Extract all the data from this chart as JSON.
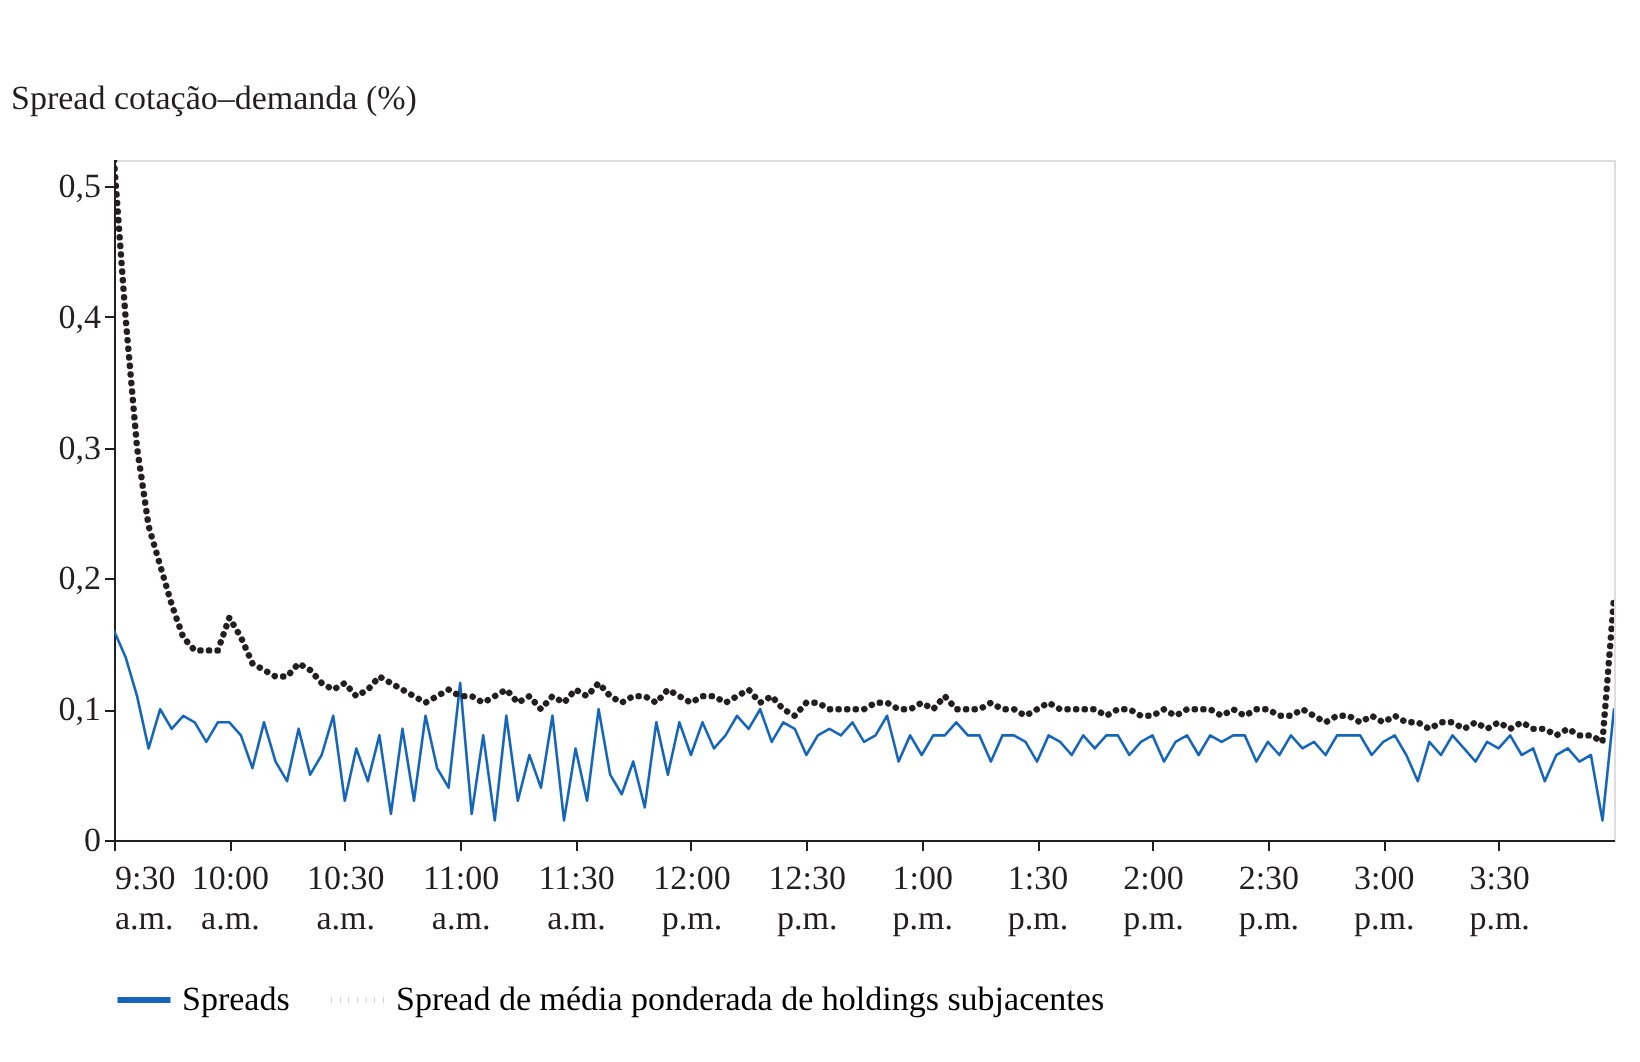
{
  "chart_data": {
    "type": "line",
    "ylabel": "Spread cotação–demanda (%)",
    "x": [
      9.5,
      9.55,
      9.6,
      9.65,
      9.7,
      9.75,
      9.8,
      9.85,
      9.9,
      9.95,
      10.0,
      10.05,
      10.1,
      10.15,
      10.2,
      10.25,
      10.3,
      10.35,
      10.4,
      10.45,
      10.5,
      10.55,
      10.6,
      10.65,
      10.7,
      10.75,
      10.8,
      10.85,
      10.9,
      10.95,
      11.0,
      11.05,
      11.1,
      11.15,
      11.2,
      11.25,
      11.3,
      11.35,
      11.4,
      11.45,
      11.5,
      11.55,
      11.6,
      11.65,
      11.7,
      11.75,
      11.8,
      11.85,
      11.9,
      11.95,
      12.0,
      12.05,
      12.1,
      12.15,
      12.2,
      12.25,
      12.3,
      12.35,
      12.4,
      12.45,
      12.5,
      12.55,
      12.6,
      12.65,
      12.7,
      12.75,
      12.8,
      12.85,
      12.9,
      12.95,
      13.0,
      13.05,
      13.1,
      13.15,
      13.2,
      13.25,
      13.3,
      13.35,
      13.4,
      13.45,
      13.5,
      13.55,
      13.6,
      13.65,
      13.7,
      13.75,
      13.8,
      13.85,
      13.9,
      13.95,
      14.0,
      14.05,
      14.1,
      14.15,
      14.2,
      14.25,
      14.3,
      14.35,
      14.4,
      14.45,
      14.5,
      14.55,
      14.6,
      14.65,
      14.7,
      14.75,
      14.8,
      14.85,
      14.9,
      14.95,
      15.0,
      15.05,
      15.1,
      15.15,
      15.2,
      15.25,
      15.3,
      15.35,
      15.4,
      15.45,
      15.5,
      15.55,
      15.6,
      15.65,
      15.7,
      15.75,
      15.8,
      15.85,
      15.9,
      15.95,
      16.0
    ],
    "series": [
      {
        "name": "Spreads",
        "color": "#1565b8",
        "line_style": "solid",
        "values": [
          0.16,
          0.14,
          0.11,
          0.07,
          0.1,
          0.085,
          0.095,
          0.09,
          0.075,
          0.09,
          0.09,
          0.08,
          0.055,
          0.09,
          0.06,
          0.045,
          0.085,
          0.05,
          0.065,
          0.095,
          0.03,
          0.07,
          0.045,
          0.08,
          0.02,
          0.085,
          0.03,
          0.095,
          0.055,
          0.04,
          0.12,
          0.02,
          0.08,
          0.015,
          0.095,
          0.03,
          0.065,
          0.04,
          0.095,
          0.015,
          0.07,
          0.03,
          0.1,
          0.05,
          0.035,
          0.06,
          0.025,
          0.09,
          0.05,
          0.09,
          0.065,
          0.09,
          0.07,
          0.08,
          0.095,
          0.085,
          0.1,
          0.075,
          0.09,
          0.085,
          0.065,
          0.08,
          0.085,
          0.08,
          0.09,
          0.075,
          0.08,
          0.095,
          0.06,
          0.08,
          0.065,
          0.08,
          0.08,
          0.09,
          0.08,
          0.08,
          0.06,
          0.08,
          0.08,
          0.075,
          0.06,
          0.08,
          0.075,
          0.065,
          0.08,
          0.07,
          0.08,
          0.08,
          0.065,
          0.075,
          0.08,
          0.06,
          0.075,
          0.08,
          0.065,
          0.08,
          0.075,
          0.08,
          0.08,
          0.06,
          0.075,
          0.065,
          0.08,
          0.07,
          0.075,
          0.065,
          0.08,
          0.08,
          0.08,
          0.065,
          0.075,
          0.08,
          0.065,
          0.045,
          0.075,
          0.065,
          0.08,
          0.07,
          0.06,
          0.075,
          0.07,
          0.08,
          0.065,
          0.07,
          0.045,
          0.065,
          0.07,
          0.06,
          0.065,
          0.015,
          0.1
        ]
      },
      {
        "name": "Spread de média ponderada de holdings subjacentes",
        "color": "#231f20",
        "line_style": "dotted",
        "values": [
          0.52,
          0.4,
          0.3,
          0.24,
          0.21,
          0.18,
          0.155,
          0.145,
          0.145,
          0.145,
          0.17,
          0.155,
          0.135,
          0.13,
          0.125,
          0.125,
          0.135,
          0.13,
          0.12,
          0.115,
          0.12,
          0.11,
          0.115,
          0.125,
          0.12,
          0.115,
          0.11,
          0.105,
          0.11,
          0.115,
          0.11,
          0.11,
          0.105,
          0.11,
          0.115,
          0.105,
          0.11,
          0.1,
          0.11,
          0.105,
          0.115,
          0.11,
          0.12,
          0.11,
          0.105,
          0.11,
          0.11,
          0.105,
          0.115,
          0.11,
          0.105,
          0.11,
          0.11,
          0.105,
          0.11,
          0.115,
          0.105,
          0.11,
          0.1,
          0.095,
          0.105,
          0.105,
          0.1,
          0.1,
          0.1,
          0.1,
          0.105,
          0.105,
          0.1,
          0.1,
          0.105,
          0.1,
          0.11,
          0.1,
          0.1,
          0.1,
          0.105,
          0.1,
          0.1,
          0.095,
          0.1,
          0.105,
          0.1,
          0.1,
          0.1,
          0.1,
          0.095,
          0.1,
          0.1,
          0.095,
          0.095,
          0.1,
          0.095,
          0.1,
          0.1,
          0.1,
          0.095,
          0.1,
          0.095,
          0.1,
          0.1,
          0.095,
          0.095,
          0.1,
          0.095,
          0.09,
          0.095,
          0.095,
          0.09,
          0.095,
          0.09,
          0.095,
          0.09,
          0.09,
          0.085,
          0.09,
          0.09,
          0.085,
          0.09,
          0.085,
          0.09,
          0.085,
          0.09,
          0.085,
          0.085,
          0.08,
          0.085,
          0.08,
          0.08,
          0.075,
          0.185
        ]
      }
    ],
    "xlim": [
      9.5,
      16.0
    ],
    "xticks": [
      {
        "value": 9.5,
        "label": "9:30\na.m."
      },
      {
        "value": 10.0,
        "label": "10:00\na.m."
      },
      {
        "value": 10.5,
        "label": "10:30\na.m."
      },
      {
        "value": 11.0,
        "label": "11:00\na.m."
      },
      {
        "value": 11.5,
        "label": "11:30\na.m."
      },
      {
        "value": 12.0,
        "label": "12:00\np.m."
      },
      {
        "value": 12.5,
        "label": "12:30\np.m."
      },
      {
        "value": 13.0,
        "label": "1:00\np.m."
      },
      {
        "value": 13.5,
        "label": "1:30\np.m."
      },
      {
        "value": 14.0,
        "label": "2:00\np.m."
      },
      {
        "value": 14.5,
        "label": "2:30\np.m."
      },
      {
        "value": 15.0,
        "label": "3:00\np.m."
      },
      {
        "value": 15.5,
        "label": "3:30\np.m."
      }
    ],
    "ylim": [
      0,
      0.52
    ],
    "yticks": [
      0,
      {
        "value": 0.1,
        "label": "0,1"
      },
      {
        "value": 0.2,
        "label": "0,2"
      },
      {
        "value": 0.3,
        "label": "0,3"
      },
      {
        "value": 0.4,
        "label": "0,4"
      },
      {
        "value": 0.5,
        "label": "0,5"
      }
    ],
    "grid": false,
    "legend": "bottom"
  }
}
